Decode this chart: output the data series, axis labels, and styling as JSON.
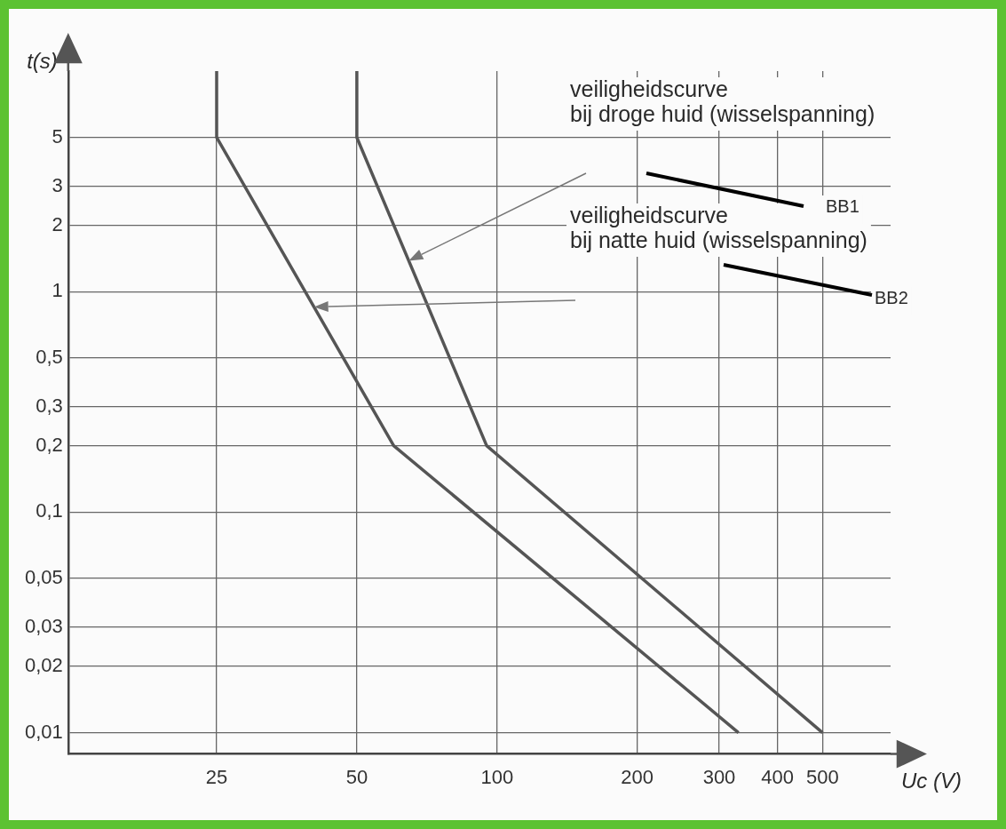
{
  "chart_data": {
    "type": "line",
    "xlabel": "Uc (V)",
    "ylabel": "t(s)",
    "series": [
      {
        "color": "#555555",
        "x": [
          50,
          50,
          95,
          500
        ],
        "values": [
          10,
          5,
          0.2,
          0.01
        ]
      },
      {
        "color": "#555555",
        "x": [
          25,
          25,
          60,
          330
        ],
        "values": [
          10,
          5,
          0.2,
          0.01
        ]
      }
    ],
    "log": "xy",
    "xlim": [
      12,
      700
    ],
    "ylim": [
      0.008,
      10
    ],
    "xticks": [
      25,
      50,
      100,
      200,
      300,
      400,
      500
    ],
    "yticks": [
      {
        "value": 0.01,
        "label": "0,01"
      },
      {
        "value": 0.02,
        "label": "0,02"
      },
      {
        "value": 0.03,
        "label": "0,03"
      },
      {
        "value": 0.05,
        "label": "0,05"
      },
      {
        "value": 0.1,
        "label": "0,1"
      },
      {
        "value": 0.2,
        "label": "0,2"
      },
      {
        "value": 0.3,
        "label": "0,3"
      },
      {
        "value": 0.5,
        "label": "0,5"
      },
      1,
      2,
      3,
      5
    ],
    "grid": true,
    "legend": false,
    "marker": "none",
    "line_style": "solid",
    "annotations": [
      "veiligheidscurve\nbij droge huid (wisselspanning)",
      "veiligheidscurve\nbij natte huid (wisselspanning)",
      "BB1",
      "BB2"
    ]
  }
}
